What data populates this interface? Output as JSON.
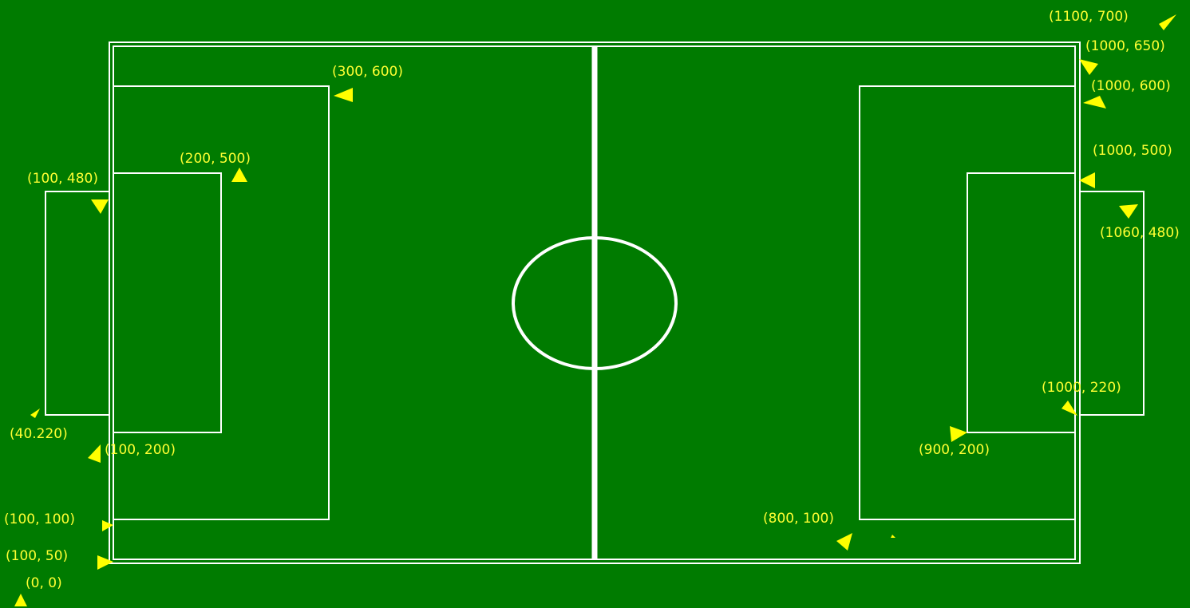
{
  "colors": {
    "field": "#007b00",
    "lines": "#ffffff",
    "labels": "#ffff33",
    "arrows": "#ffff00"
  },
  "coordinate_labels": [
    "(1100, 700)",
    "(1000, 650)",
    "(1000, 600)",
    "(1000, 500)",
    "(1060, 480)",
    "(1000, 220)",
    "(900, 200)",
    "(800, 100)",
    "(300, 600)",
    "(200, 500)",
    "(100, 480)",
    "(40.220)",
    "(100, 200)",
    "(100, 100)",
    "(100, 50)",
    "(0, 0)"
  ]
}
